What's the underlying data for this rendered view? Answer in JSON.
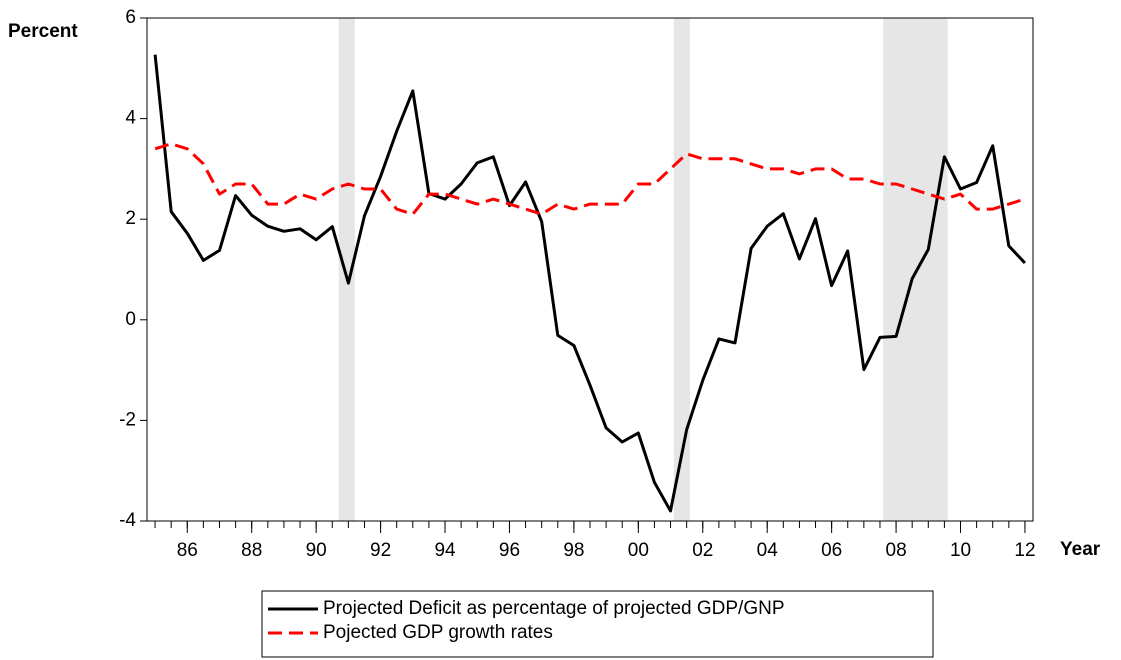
{
  "chart_data": {
    "type": "line",
    "y_label": "Percent",
    "x_label": "Year",
    "x": [
      1985.0,
      1985.5,
      1986.0,
      1986.5,
      1987.0,
      1987.5,
      1988.0,
      1988.5,
      1989.0,
      1989.5,
      1990.0,
      1990.5,
      1991.0,
      1991.5,
      1992.0,
      1992.5,
      1993.0,
      1993.5,
      1994.0,
      1994.5,
      1995.0,
      1995.5,
      1996.0,
      1996.5,
      1997.0,
      1997.5,
      1998.0,
      1998.5,
      1999.0,
      1999.5,
      2000.0,
      2000.5,
      2001.0,
      2001.5,
      2002.0,
      2002.5,
      2003.0,
      2003.5,
      2004.0,
      2004.5,
      2005.0,
      2005.5,
      2006.0,
      2006.5,
      2007.0,
      2007.5,
      2008.0,
      2008.5,
      2009.0,
      2009.5,
      2010.0,
      2010.5,
      2011.0,
      2011.5,
      2012.0
    ],
    "series": [
      {
        "name": "Projected Deficit as percentage of projected GDP/GNP",
        "color": "#000000",
        "dash": "solid",
        "values": [
          5.27,
          2.15,
          1.72,
          1.18,
          1.38,
          2.47,
          2.08,
          1.86,
          1.76,
          1.81,
          1.59,
          1.85,
          0.73,
          2.07,
          2.85,
          3.75,
          4.55,
          2.51,
          2.4,
          2.7,
          3.12,
          3.24,
          2.27,
          2.74,
          1.95,
          -0.31,
          -0.51,
          -1.3,
          -2.15,
          -2.43,
          -2.25,
          -3.23,
          -3.8,
          -2.18,
          -1.2,
          -0.38,
          -0.46,
          1.42,
          1.86,
          2.11,
          1.21,
          2.01,
          0.68,
          1.37,
          -0.99,
          -0.35,
          -0.33,
          0.82,
          1.4,
          3.24,
          2.6,
          2.73,
          3.46,
          1.47,
          1.13
        ]
      },
      {
        "name": "Pojected GDP growth rates",
        "color": "#ff0000",
        "dash": "dashed",
        "values": [
          3.4,
          3.5,
          3.4,
          3.1,
          2.5,
          2.7,
          2.7,
          2.3,
          2.3,
          2.5,
          2.4,
          2.6,
          2.7,
          2.6,
          2.6,
          2.2,
          2.1,
          2.5,
          2.5,
          2.4,
          2.3,
          2.4,
          2.3,
          2.2,
          2.1,
          2.3,
          2.2,
          2.3,
          2.3,
          2.3,
          2.7,
          2.7,
          3.0,
          3.3,
          3.2,
          3.2,
          3.2,
          3.1,
          3.0,
          3.0,
          2.9,
          3.0,
          3.0,
          2.8,
          2.8,
          2.7,
          2.7,
          2.6,
          2.5,
          2.4,
          2.5,
          2.2,
          2.2,
          2.3,
          2.4
        ]
      }
    ],
    "shaded_periods": [
      [
        1990.7,
        1991.2
      ],
      [
        2001.1,
        2001.6
      ],
      [
        2007.6,
        2009.6
      ]
    ],
    "shade_color": "#e6e6e6",
    "xlim": [
      1984.75,
      2012.25
    ],
    "xticks": [
      {
        "value": 1986,
        "label": "86"
      },
      {
        "value": 1988,
        "label": "88"
      },
      {
        "value": 1990,
        "label": "90"
      },
      {
        "value": 1992,
        "label": "92"
      },
      {
        "value": 1994,
        "label": "94"
      },
      {
        "value": 1996,
        "label": "96"
      },
      {
        "value": 1998,
        "label": "98"
      },
      {
        "value": 2000,
        "label": "00"
      },
      {
        "value": 2002,
        "label": "02"
      },
      {
        "value": 2004,
        "label": "04"
      },
      {
        "value": 2006,
        "label": "06"
      },
      {
        "value": 2008,
        "label": "08"
      },
      {
        "value": 2010,
        "label": "10"
      },
      {
        "value": 2012,
        "label": "12"
      }
    ],
    "ylim": [
      -4,
      6
    ],
    "yticks": [
      -4,
      -2,
      0,
      2,
      4,
      6
    ],
    "grid": false,
    "legend": "bottom"
  }
}
